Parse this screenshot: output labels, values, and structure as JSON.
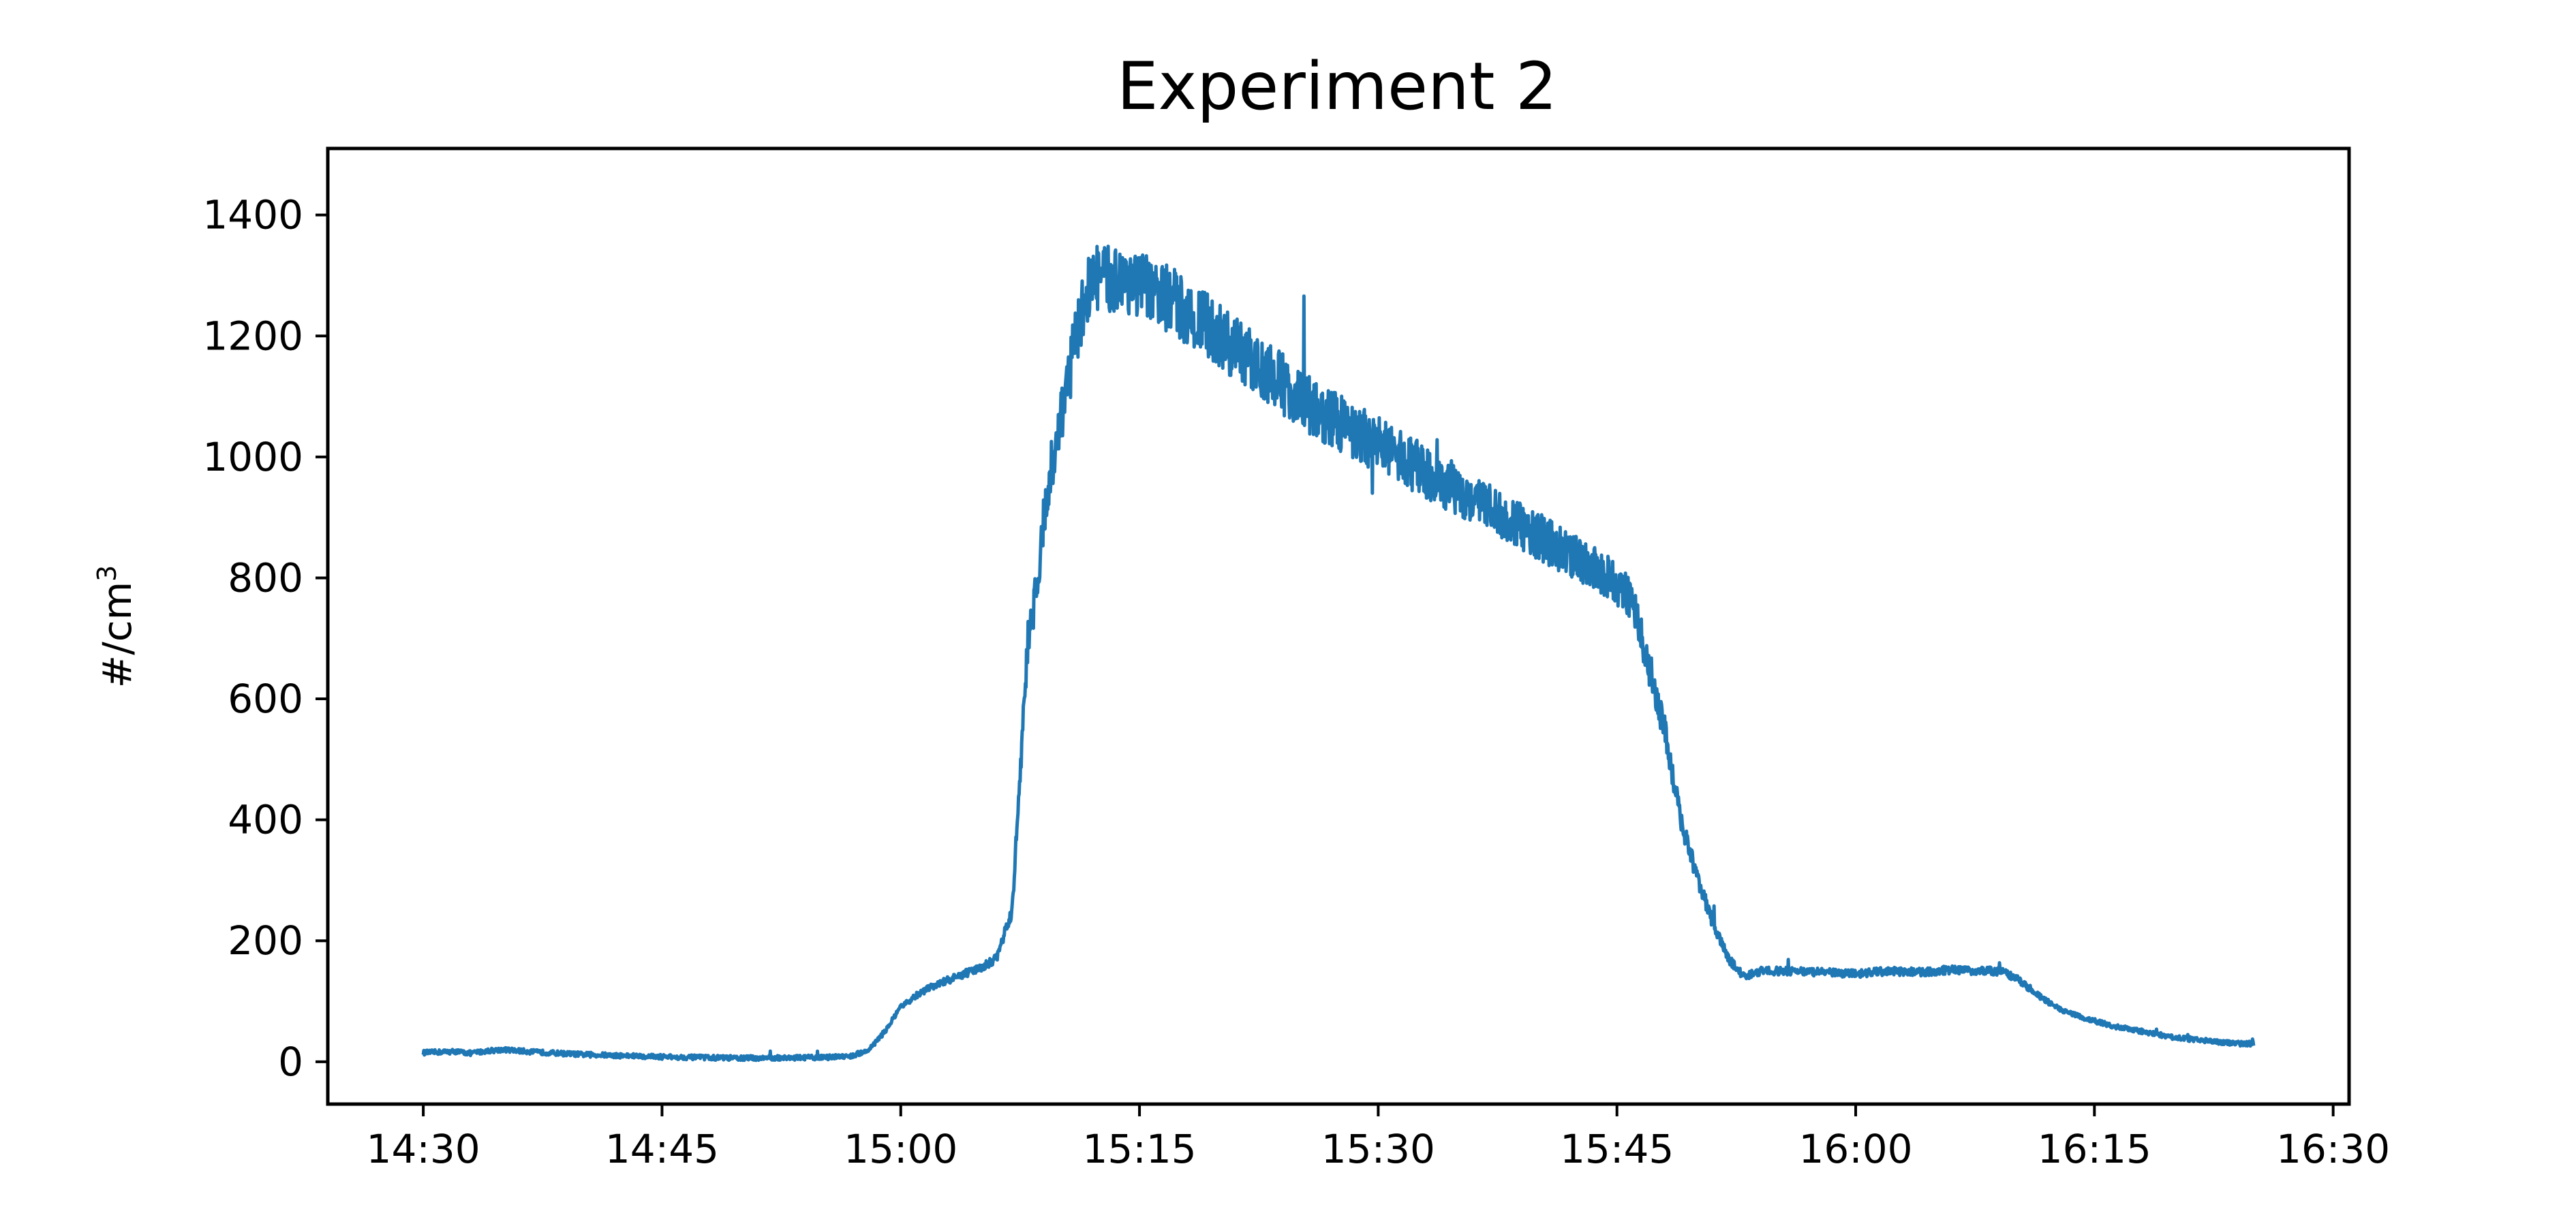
{
  "chart_data": {
    "type": "line",
    "title": "Experiment 2",
    "xlabel": "",
    "ylabel": "#/cm",
    "ylabel_superscript": "3",
    "x_tick_labels": [
      "14:30",
      "14:45",
      "15:00",
      "15:15",
      "15:30",
      "15:45",
      "16:00",
      "16:15",
      "16:30"
    ],
    "y_tick_labels": [
      "0",
      "200",
      "400",
      "600",
      "800",
      "1000",
      "1200",
      "1400"
    ],
    "xlim": [
      "14:24",
      "16:31"
    ],
    "ylim": [
      -70,
      1510
    ],
    "grid": false,
    "colors": {
      "series": "#1f77b4",
      "axes": "#000000",
      "background": "#ffffff"
    },
    "series": [
      {
        "x": [
          "14:30",
          "14:32",
          "14:33",
          "14:34",
          "14:35",
          "14:37",
          "14:40",
          "14:45",
          "14:50",
          "14:55",
          "14:56",
          "14:57",
          "14:58",
          "14:59",
          "15:00",
          "15:01",
          "15:02",
          "15:03",
          "15:04",
          "15:05",
          "15:06",
          "15:07",
          "15:07:30",
          "15:08",
          "15:08:30",
          "15:09",
          "15:10",
          "15:11",
          "15:12",
          "15:13",
          "15:14",
          "15:15",
          "15:16",
          "15:17",
          "15:18",
          "15:19",
          "15:20",
          "15:22",
          "15:24",
          "15:26",
          "15:28",
          "15:30",
          "15:32",
          "15:34",
          "15:36",
          "15:38",
          "15:40",
          "15:42",
          "15:44",
          "15:45",
          "15:46",
          "15:47",
          "15:48",
          "15:49",
          "15:50",
          "15:51",
          "15:52",
          "15:53",
          "15:54",
          "15:56",
          "15:58",
          "16:00",
          "16:02",
          "16:04",
          "16:06",
          "16:08",
          "16:09",
          "16:10",
          "16:11",
          "16:12",
          "16:13",
          "16:14",
          "16:16",
          "16:18",
          "16:20",
          "16:22",
          "16:24",
          "16:25"
        ],
        "y": [
          15,
          17,
          14,
          18,
          20,
          16,
          12,
          8,
          6,
          7,
          8,
          10,
          20,
          50,
          90,
          110,
          125,
          135,
          145,
          155,
          170,
          250,
          480,
          700,
          780,
          900,
          1050,
          1200,
          1300,
          1290,
          1300,
          1280,
          1270,
          1260,
          1240,
          1220,
          1200,
          1160,
          1120,
          1080,
          1050,
          1020,
          990,
          960,
          930,
          900,
          870,
          840,
          810,
          790,
          760,
          650,
          550,
          400,
          310,
          230,
          170,
          140,
          150,
          150,
          148,
          145,
          150,
          148,
          152,
          150,
          150,
          140,
          120,
          100,
          85,
          75,
          60,
          50,
          40,
          35,
          30,
          30
        ]
      }
    ]
  }
}
